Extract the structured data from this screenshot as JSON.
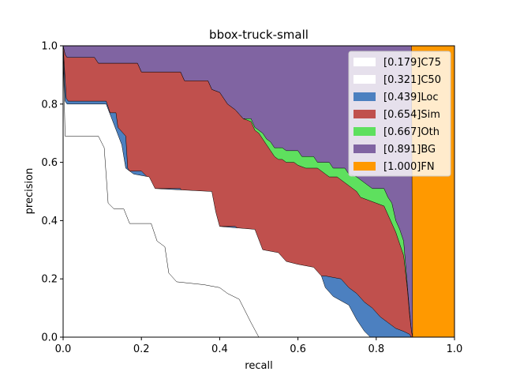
{
  "chart_data": {
    "type": "area",
    "title": "bbox-truck-small",
    "xlabel": "recall",
    "ylabel": "precision",
    "xlim": [
      0,
      1
    ],
    "ylim": [
      0,
      1
    ],
    "xticks": [
      "0.0",
      "0.2",
      "0.4",
      "0.6",
      "0.8",
      "1.0"
    ],
    "yticks": [
      "0.0",
      "0.2",
      "0.4",
      "0.6",
      "0.8",
      "1.0"
    ],
    "grid": false,
    "legend_position": "top-right",
    "legend": [
      {
        "label": "[0.179]C75",
        "color": "#ffffff"
      },
      {
        "label": "[0.321]C50",
        "color": "#ffffff"
      },
      {
        "label": "[0.439]Loc",
        "color": "#4c80c0"
      },
      {
        "label": "[0.654]Sim",
        "color": "#c0504d"
      },
      {
        "label": "[0.667]Oth",
        "color": "#5ee05e"
      },
      {
        "label": "[0.891]BG",
        "color": "#8064a2"
      },
      {
        "label": "[1.000]FN",
        "color": "#ff9900"
      }
    ],
    "series": [
      {
        "name": "[0.179]C75",
        "color": "#ffffff",
        "points": [
          [
            0,
            1.0
          ],
          [
            0.005,
            0.69
          ],
          [
            0.09,
            0.69
          ],
          [
            0.105,
            0.65
          ],
          [
            0.115,
            0.46
          ],
          [
            0.13,
            0.44
          ],
          [
            0.155,
            0.44
          ],
          [
            0.17,
            0.39
          ],
          [
            0.225,
            0.39
          ],
          [
            0.24,
            0.33
          ],
          [
            0.26,
            0.31
          ],
          [
            0.27,
            0.22
          ],
          [
            0.29,
            0.19
          ],
          [
            0.36,
            0.18
          ],
          [
            0.4,
            0.17
          ],
          [
            0.42,
            0.15
          ],
          [
            0.45,
            0.13
          ],
          [
            0.48,
            0.05
          ],
          [
            0.5,
            0.0
          ]
        ]
      },
      {
        "name": "[0.321]C50",
        "color": "#ffffff",
        "points": [
          [
            0,
            1.0
          ],
          [
            0.005,
            0.81
          ],
          [
            0.01,
            0.8
          ],
          [
            0.11,
            0.8
          ],
          [
            0.13,
            0.73
          ],
          [
            0.15,
            0.66
          ],
          [
            0.16,
            0.58
          ],
          [
            0.18,
            0.56
          ],
          [
            0.22,
            0.55
          ],
          [
            0.235,
            0.51
          ],
          [
            0.38,
            0.5
          ],
          [
            0.39,
            0.43
          ],
          [
            0.4,
            0.38
          ],
          [
            0.49,
            0.37
          ],
          [
            0.51,
            0.3
          ],
          [
            0.55,
            0.29
          ],
          [
            0.57,
            0.26
          ],
          [
            0.6,
            0.25
          ],
          [
            0.64,
            0.24
          ],
          [
            0.66,
            0.21
          ],
          [
            0.67,
            0.17
          ],
          [
            0.69,
            0.14
          ],
          [
            0.73,
            0.11
          ],
          [
            0.75,
            0.06
          ],
          [
            0.77,
            0.02
          ],
          [
            0.785,
            0.0
          ]
        ]
      },
      {
        "name": "[0.439]Loc",
        "color": "#4c80c0",
        "points": [
          [
            0,
            1.0
          ],
          [
            0.008,
            0.82
          ],
          [
            0.013,
            0.81
          ],
          [
            0.11,
            0.81
          ],
          [
            0.12,
            0.77
          ],
          [
            0.135,
            0.77
          ],
          [
            0.14,
            0.72
          ],
          [
            0.16,
            0.69
          ],
          [
            0.165,
            0.58
          ],
          [
            0.17,
            0.57
          ],
          [
            0.2,
            0.57
          ],
          [
            0.215,
            0.55
          ],
          [
            0.225,
            0.51
          ],
          [
            0.3,
            0.51
          ],
          [
            0.31,
            0.47
          ],
          [
            0.36,
            0.47
          ],
          [
            0.37,
            0.42
          ],
          [
            0.38,
            0.42
          ],
          [
            0.385,
            0.38
          ],
          [
            0.44,
            0.38
          ],
          [
            0.45,
            0.37
          ],
          [
            0.445,
            0.34
          ],
          [
            0.465,
            0.33
          ],
          [
            0.47,
            0.31
          ],
          [
            0.495,
            0.3
          ],
          [
            0.51,
            0.28
          ],
          [
            0.54,
            0.27
          ],
          [
            0.56,
            0.26
          ],
          [
            0.58,
            0.25
          ],
          [
            0.6,
            0.25
          ],
          [
            0.6,
            0.23
          ],
          [
            0.64,
            0.22
          ],
          [
            0.65,
            0.21
          ],
          [
            0.67,
            0.21
          ],
          [
            0.71,
            0.2
          ],
          [
            0.73,
            0.17
          ],
          [
            0.75,
            0.15
          ],
          [
            0.77,
            0.12
          ],
          [
            0.79,
            0.1
          ],
          [
            0.81,
            0.07
          ],
          [
            0.83,
            0.05
          ],
          [
            0.84,
            0.04
          ],
          [
            0.85,
            0.03
          ],
          [
            0.87,
            0.02
          ],
          [
            0.885,
            0.01
          ],
          [
            0.89,
            0.0
          ]
        ]
      },
      {
        "name": "[0.654]Sim",
        "color": "#c0504d",
        "points": [
          [
            0,
            1.0
          ],
          [
            0.005,
            0.97
          ],
          [
            0.01,
            0.96
          ],
          [
            0.08,
            0.96
          ],
          [
            0.09,
            0.94
          ],
          [
            0.19,
            0.94
          ],
          [
            0.2,
            0.91
          ],
          [
            0.3,
            0.91
          ],
          [
            0.31,
            0.88
          ],
          [
            0.37,
            0.88
          ],
          [
            0.38,
            0.85
          ],
          [
            0.4,
            0.84
          ],
          [
            0.42,
            0.8
          ],
          [
            0.44,
            0.78
          ],
          [
            0.46,
            0.75
          ],
          [
            0.48,
            0.74
          ],
          [
            0.49,
            0.71
          ],
          [
            0.5,
            0.7
          ],
          [
            0.51,
            0.68
          ],
          [
            0.52,
            0.66
          ],
          [
            0.53,
            0.64
          ],
          [
            0.54,
            0.62
          ],
          [
            0.55,
            0.61
          ],
          [
            0.56,
            0.61
          ],
          [
            0.57,
            0.6
          ],
          [
            0.59,
            0.6
          ],
          [
            0.6,
            0.59
          ],
          [
            0.62,
            0.58
          ],
          [
            0.65,
            0.58
          ],
          [
            0.67,
            0.56
          ],
          [
            0.68,
            0.55
          ],
          [
            0.7,
            0.55
          ],
          [
            0.72,
            0.53
          ],
          [
            0.73,
            0.52
          ],
          [
            0.74,
            0.51
          ],
          [
            0.75,
            0.5
          ],
          [
            0.76,
            0.48
          ],
          [
            0.78,
            0.47
          ],
          [
            0.8,
            0.46
          ],
          [
            0.82,
            0.45
          ],
          [
            0.83,
            0.42
          ],
          [
            0.85,
            0.36
          ],
          [
            0.86,
            0.32
          ],
          [
            0.87,
            0.28
          ],
          [
            0.88,
            0.16
          ],
          [
            0.885,
            0.08
          ],
          [
            0.89,
            0.02
          ],
          [
            0.893,
            0.0
          ]
        ]
      },
      {
        "name": "[0.667]Oth",
        "color": "#5ee05e",
        "points": [
          [
            0,
            1.0
          ],
          [
            0.005,
            0.97
          ],
          [
            0.01,
            0.96
          ],
          [
            0.08,
            0.96
          ],
          [
            0.09,
            0.94
          ],
          [
            0.19,
            0.94
          ],
          [
            0.2,
            0.91
          ],
          [
            0.3,
            0.91
          ],
          [
            0.31,
            0.88
          ],
          [
            0.37,
            0.88
          ],
          [
            0.38,
            0.85
          ],
          [
            0.4,
            0.84
          ],
          [
            0.42,
            0.8
          ],
          [
            0.44,
            0.78
          ],
          [
            0.46,
            0.75
          ],
          [
            0.48,
            0.75
          ],
          [
            0.49,
            0.72
          ],
          [
            0.5,
            0.71
          ],
          [
            0.51,
            0.7
          ],
          [
            0.52,
            0.68
          ],
          [
            0.53,
            0.67
          ],
          [
            0.54,
            0.65
          ],
          [
            0.55,
            0.65
          ],
          [
            0.56,
            0.65
          ],
          [
            0.57,
            0.64
          ],
          [
            0.6,
            0.64
          ],
          [
            0.61,
            0.62
          ],
          [
            0.64,
            0.62
          ],
          [
            0.65,
            0.6
          ],
          [
            0.68,
            0.6
          ],
          [
            0.69,
            0.58
          ],
          [
            0.72,
            0.58
          ],
          [
            0.73,
            0.56
          ],
          [
            0.75,
            0.55
          ],
          [
            0.77,
            0.53
          ],
          [
            0.79,
            0.51
          ],
          [
            0.82,
            0.51
          ],
          [
            0.83,
            0.48
          ],
          [
            0.84,
            0.46
          ],
          [
            0.85,
            0.4
          ],
          [
            0.86,
            0.37
          ],
          [
            0.87,
            0.33
          ],
          [
            0.875,
            0.25
          ],
          [
            0.88,
            0.17
          ],
          [
            0.885,
            0.09
          ],
          [
            0.89,
            0.02
          ],
          [
            0.893,
            0.0
          ]
        ]
      },
      {
        "name": "[0.891]BG",
        "color": "#8064a2",
        "points": [
          [
            0,
            1.0
          ],
          [
            0.89,
            1.0
          ],
          [
            0.893,
            0.0
          ]
        ]
      },
      {
        "name": "[1.000]FN",
        "color": "#ff9900",
        "points": [
          [
            0,
            1.0
          ],
          [
            1.0,
            1.0
          ],
          [
            1.0,
            0.0
          ]
        ]
      }
    ]
  }
}
